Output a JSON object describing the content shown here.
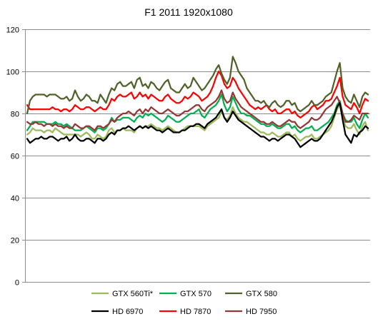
{
  "chart_data": {
    "type": "line",
    "title": "F1 2011 1920x1080",
    "xlabel": "",
    "ylabel": "",
    "ylim": [
      0,
      120
    ],
    "yticks": [
      0,
      20,
      40,
      60,
      80,
      100,
      120
    ],
    "grid": true,
    "legend_position": "bottom",
    "series": [
      {
        "name": "GTX 560Ti*",
        "color": "#9bbb59",
        "values": [
          70,
          71,
          73,
          72,
          72,
          72,
          71,
          72,
          72,
          71,
          73,
          72,
          71,
          70,
          70,
          70,
          70,
          70,
          70,
          69,
          70,
          71,
          70,
          68,
          68,
          70,
          69,
          68,
          69,
          72,
          73,
          71,
          72,
          72,
          73,
          72,
          72,
          72,
          71,
          73,
          74,
          73,
          74,
          74,
          75,
          74,
          73,
          73,
          72,
          73,
          74,
          73,
          72,
          71,
          71,
          72,
          73,
          74,
          74,
          74,
          74,
          74,
          73,
          72,
          74,
          75,
          76,
          77,
          78,
          81,
          78,
          77,
          79,
          83,
          80,
          78,
          77,
          76,
          76,
          75,
          74,
          73,
          72,
          71,
          71,
          70,
          70,
          71,
          70,
          69,
          69,
          70,
          71,
          71,
          69,
          70,
          68,
          67,
          68,
          69,
          69,
          70,
          68,
          68,
          69,
          70,
          71,
          72,
          74,
          78,
          82,
          84,
          78,
          74,
          73,
          73,
          75,
          72,
          70,
          74,
          76,
          72
        ]
      },
      {
        "name": "GTX 570",
        "color": "#00b050",
        "values": [
          72,
          74,
          76,
          76,
          76,
          76,
          76,
          75,
          75,
          75,
          76,
          75,
          75,
          74,
          75,
          74,
          73,
          72,
          72,
          72,
          73,
          74,
          73,
          72,
          71,
          73,
          73,
          72,
          73,
          75,
          78,
          76,
          77,
          77,
          78,
          78,
          78,
          77,
          76,
          78,
          79,
          78,
          80,
          79,
          80,
          79,
          78,
          77,
          76,
          77,
          79,
          78,
          77,
          76,
          76,
          77,
          78,
          79,
          80,
          80,
          81,
          82,
          79,
          78,
          80,
          82,
          83,
          84,
          86,
          89,
          84,
          81,
          83,
          88,
          85,
          82,
          80,
          80,
          79,
          79,
          78,
          77,
          76,
          75,
          75,
          74,
          74,
          75,
          74,
          73,
          73,
          74,
          75,
          75,
          73,
          74,
          72,
          71,
          72,
          73,
          73,
          74,
          72,
          72,
          73,
          74,
          75,
          76,
          78,
          80,
          84,
          86,
          80,
          77,
          76,
          76,
          78,
          75,
          73,
          77,
          80,
          78
        ]
      },
      {
        "name": "GTX 580",
        "color": "#4f6228",
        "values": [
          80,
          86,
          88,
          89,
          89,
          89,
          89,
          88,
          89,
          89,
          89,
          88,
          87,
          87,
          88,
          86,
          87,
          91,
          88,
          86,
          87,
          89,
          88,
          86,
          86,
          85,
          89,
          87,
          85,
          89,
          92,
          91,
          94,
          95,
          93,
          93,
          94,
          95,
          92,
          96,
          97,
          93,
          94,
          92,
          95,
          94,
          92,
          91,
          93,
          95,
          96,
          92,
          91,
          90,
          90,
          92,
          94,
          92,
          93,
          97,
          95,
          93,
          91,
          92,
          94,
          96,
          98,
          101,
          103,
          99,
          96,
          94,
          97,
          107,
          104,
          100,
          98,
          96,
          92,
          90,
          88,
          86,
          86,
          85,
          86,
          84,
          83,
          85,
          86,
          84,
          83,
          84,
          86,
          86,
          84,
          85,
          82,
          81,
          82,
          83,
          84,
          86,
          84,
          84,
          85,
          86,
          88,
          89,
          90,
          95,
          100,
          104,
          92,
          88,
          86,
          85,
          89,
          86,
          83,
          88,
          90,
          89
        ]
      },
      {
        "name": "HD 6970",
        "color": "#000000",
        "values": [
          68,
          66,
          67,
          68,
          68,
          69,
          68,
          68,
          69,
          69,
          68,
          67,
          68,
          68,
          69,
          67,
          68,
          70,
          68,
          67,
          67,
          68,
          68,
          67,
          66,
          68,
          68,
          67,
          68,
          70,
          71,
          70,
          72,
          72,
          73,
          73,
          74,
          73,
          72,
          73,
          74,
          73,
          74,
          73,
          74,
          73,
          72,
          72,
          71,
          72,
          73,
          72,
          71,
          71,
          71,
          72,
          72,
          73,
          74,
          74,
          75,
          75,
          74,
          73,
          75,
          76,
          77,
          78,
          80,
          82,
          78,
          76,
          78,
          81,
          79,
          77,
          76,
          75,
          74,
          73,
          72,
          71,
          70,
          69,
          69,
          68,
          67,
          68,
          68,
          67,
          68,
          69,
          70,
          70,
          69,
          68,
          66,
          64,
          65,
          66,
          67,
          68,
          67,
          67,
          68,
          70,
          72,
          74,
          76,
          79,
          83,
          85,
          77,
          70,
          68,
          66,
          70,
          69,
          71,
          72,
          74,
          73
        ]
      },
      {
        "name": "HD 7870",
        "color": "#ff0000",
        "values": [
          84,
          82,
          82,
          82,
          82,
          82,
          82,
          82,
          82,
          83,
          82,
          82,
          81,
          82,
          82,
          81,
          82,
          84,
          83,
          82,
          82,
          83,
          83,
          82,
          81,
          82,
          83,
          82,
          82,
          84,
          87,
          86,
          88,
          89,
          88,
          88,
          89,
          90,
          87,
          88,
          90,
          88,
          89,
          87,
          89,
          88,
          87,
          86,
          86,
          88,
          89,
          87,
          86,
          85,
          85,
          86,
          88,
          87,
          88,
          90,
          89,
          88,
          86,
          87,
          88,
          90,
          93,
          97,
          100,
          98,
          94,
          92,
          93,
          97,
          95,
          92,
          90,
          88,
          86,
          84,
          83,
          82,
          83,
          82,
          83,
          84,
          82,
          81,
          82,
          80,
          80,
          81,
          82,
          82,
          80,
          81,
          79,
          78,
          79,
          80,
          81,
          83,
          84,
          82,
          83,
          84,
          86,
          86,
          87,
          90,
          93,
          97,
          88,
          84,
          83,
          82,
          85,
          83,
          80,
          84,
          87,
          86
        ]
      },
      {
        "name": "HD 7950",
        "color": "#953735",
        "values": [
          76,
          75,
          75,
          76,
          75,
          75,
          74,
          75,
          75,
          74,
          75,
          74,
          74,
          73,
          74,
          73,
          73,
          75,
          74,
          73,
          73,
          74,
          74,
          73,
          72,
          74,
          74,
          73,
          74,
          75,
          77,
          76,
          78,
          79,
          80,
          80,
          81,
          80,
          79,
          81,
          82,
          80,
          82,
          81,
          83,
          82,
          81,
          80,
          80,
          81,
          82,
          81,
          80,
          79,
          79,
          80,
          81,
          81,
          82,
          83,
          84,
          84,
          82,
          81,
          83,
          84,
          85,
          86,
          88,
          91,
          87,
          85,
          86,
          90,
          87,
          85,
          83,
          82,
          81,
          80,
          79,
          78,
          77,
          76,
          76,
          75,
          75,
          76,
          75,
          74,
          74,
          75,
          76,
          77,
          76,
          76,
          74,
          73,
          74,
          75,
          76,
          78,
          77,
          77,
          78,
          80,
          82,
          83,
          84,
          86,
          88,
          85,
          80,
          76,
          76,
          77,
          79,
          78,
          77,
          80,
          80,
          80
        ]
      }
    ]
  }
}
